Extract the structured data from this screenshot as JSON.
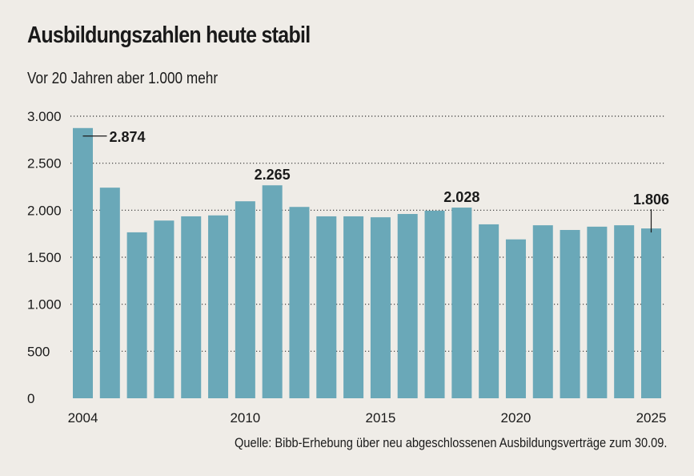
{
  "chart_data": {
    "type": "bar",
    "title": "Ausbildungszahlen heute stabil",
    "subtitle": "Vor 20 Jahren aber 1.000 mehr",
    "source": "Quelle: Bibb-Erhebung über neu abgeschlossenen Ausbildungsverträge zum 30.09.",
    "xlabel": "",
    "ylabel": "",
    "categories": [
      "2004",
      "2005",
      "2006",
      "2007",
      "2008",
      "2009",
      "2010",
      "2011",
      "2012",
      "2013",
      "2014",
      "2015",
      "2016",
      "2017",
      "2018",
      "2019",
      "2020",
      "2021",
      "2022",
      "2023",
      "2024",
      "2025"
    ],
    "values": [
      2874,
      2240,
      1765,
      1890,
      1935,
      1945,
      2095,
      2265,
      2035,
      1935,
      1935,
      1925,
      1960,
      1995,
      2028,
      1850,
      1690,
      1840,
      1790,
      1825,
      1840,
      1806
    ],
    "ylim": [
      0,
      3000
    ],
    "yticks": [
      0,
      500,
      1000,
      1500,
      2000,
      2500,
      3000
    ],
    "ytick_labels": [
      "0",
      "500",
      "1.000",
      "1.500",
      "2.000",
      "2.500",
      "3.000"
    ],
    "xtick_labels": [
      "2004",
      "2010",
      "2015",
      "2020",
      "2025"
    ],
    "data_labels": [
      {
        "category": "2004",
        "text": "2.874"
      },
      {
        "category": "2011",
        "text": "2.265"
      },
      {
        "category": "2018",
        "text": "2.028"
      },
      {
        "category": "2025",
        "text": "1.806"
      }
    ],
    "grid": true,
    "bar_color": "#6aa8b8",
    "background": "#efece7"
  }
}
